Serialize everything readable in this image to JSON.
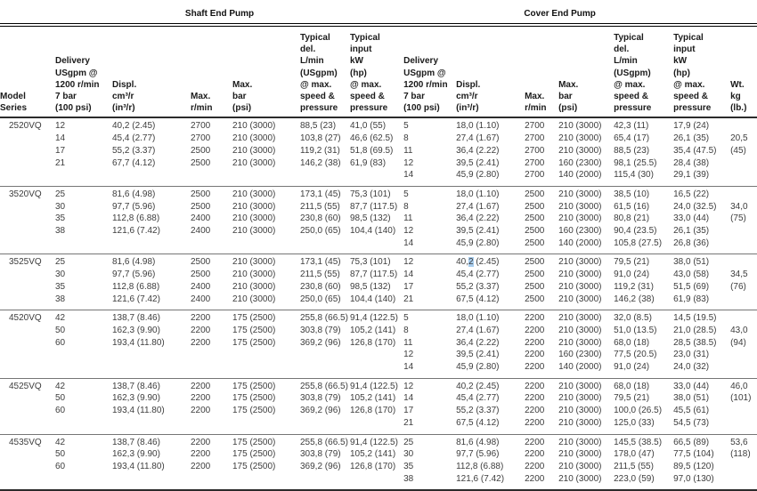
{
  "table": {
    "group_headers": {
      "shaft": "Shaft End Pump",
      "cover": "Cover End Pump"
    },
    "columns": {
      "model": "Model\nSeries",
      "delivery": "Delivery\nUSgpm @\n1200 r/min\n7 bar\n(100 psi)",
      "displ": "Displ.\ncm³/r\n(in³/r)",
      "max_rpm": "Max.\nr/min",
      "max_bar": "Max.\nbar\n(psi)",
      "typ_del": "Typical\ndel.\nL/min\n(USgpm)\n@ max.\nspeed &\npressure",
      "typ_input": "Typical\ninput\nkW\n(hp)\n@ max.\nspeed &\npressure",
      "wt": "Wt.\nkg\n(lb.)"
    },
    "highlight_cell": {
      "block": 2,
      "row": 0,
      "col": 1,
      "pre": "40,",
      "selected": "2",
      "post": " (2.45)",
      "color": "#a8cdee"
    },
    "blocks": [
      {
        "model": "2520VQ",
        "shaft": [
          [
            "12",
            "40,2 (2.45)",
            "2700",
            "210 (3000)",
            "88,5 (23)",
            "41,0 (55)"
          ],
          [
            "14",
            "45,4 (2.77)",
            "2700",
            "210 (3000)",
            "103,8 (27)",
            "46,6 (62.5)"
          ],
          [
            "17",
            "55,2 (3.37)",
            "2500",
            "210 (3000)",
            "119,2 (31)",
            "51,8 (69.5)"
          ],
          [
            "21",
            "67,7 (4.12)",
            "2500",
            "210 (3000)",
            "146,2 (38)",
            "61,9 (83)"
          ]
        ],
        "cover": [
          [
            "5",
            "18,0 (1.10)",
            "2700",
            "210 (3000)",
            "42,3 (11)",
            "17,9 (24)"
          ],
          [
            "8",
            "27,4 (1.67)",
            "2700",
            "210 (3000)",
            "65,4 (17)",
            "26,1 (35)"
          ],
          [
            "11",
            "36,4 (2.22)",
            "2700",
            "210 (3000)",
            "88,5 (23)",
            "35,4 (47.5)"
          ],
          [
            "12",
            "39,5 (2.41)",
            "2700",
            "160 (2300)",
            "98,1 (25.5)",
            "28,4 (38)"
          ],
          [
            "14",
            "45,9 (2.80)",
            "2700",
            "140 (2000)",
            "115,4 (30)",
            "29,1 (39)"
          ]
        ],
        "wt": {
          "1": "20,5",
          "2": "(45)"
        }
      },
      {
        "model": "3520VQ",
        "shaft": [
          [
            "25",
            "81,6 (4.98)",
            "2500",
            "210 (3000)",
            "173,1 (45)",
            "75,3 (101)"
          ],
          [
            "30",
            "97,7 (5.96)",
            "2500",
            "210 (3000)",
            "211,5 (55)",
            "87,7 (117.5)"
          ],
          [
            "35",
            "112,8 (6.88)",
            "2400",
            "210 (3000)",
            "230,8 (60)",
            "98,5 (132)"
          ],
          [
            "38",
            "121,6 (7.42)",
            "2400",
            "210 (3000)",
            "250,0 (65)",
            "104,4 (140)"
          ]
        ],
        "cover": [
          [
            "5",
            "18,0 (1.10)",
            "2500",
            "210 (3000)",
            "38,5 (10)",
            "16,5 (22)"
          ],
          [
            "8",
            "27,4 (1.67)",
            "2500",
            "210 (3000)",
            "61,5 (16)",
            "24,0 (32.5)"
          ],
          [
            "11",
            "36,4 (2.22)",
            "2500",
            "210 (3000)",
            "80,8 (21)",
            "33,0 (44)"
          ],
          [
            "12",
            "39,5 (2.41)",
            "2500",
            "160 (2300)",
            "90,4 (23.5)",
            "26,1 (35)"
          ],
          [
            "14",
            "45,9 (2.80)",
            "2500",
            "140 (2000)",
            "105,8 (27.5)",
            "26,8 (36)"
          ]
        ],
        "wt": {
          "1": "34,0",
          "2": "(75)"
        }
      },
      {
        "model": "3525VQ",
        "shaft": [
          [
            "25",
            "81,6 (4.98)",
            "2500",
            "210 (3000)",
            "173,1 (45)",
            "75,3 (101)"
          ],
          [
            "30",
            "97,7 (5.96)",
            "2500",
            "210 (3000)",
            "211,5 (55)",
            "87,7 (117.5)"
          ],
          [
            "35",
            "112,8 (6.88)",
            "2400",
            "210 (3000)",
            "230,8 (60)",
            "98,5 (132)"
          ],
          [
            "38",
            "121,6 (7.42)",
            "2400",
            "210 (3000)",
            "250,0 (65)",
            "104,4 (140)"
          ]
        ],
        "cover": [
          [
            "12",
            "40,2 (2.45)",
            "2500",
            "210 (3000)",
            "79,5 (21)",
            "38,0 (51)"
          ],
          [
            "14",
            "45,4 (2.77)",
            "2500",
            "210 (3000)",
            "91,0 (24)",
            "43,0 (58)"
          ],
          [
            "17",
            "55,2 (3.37)",
            "2500",
            "210 (3000)",
            "119,2 (31)",
            "51,5 (69)"
          ],
          [
            "21",
            "67,5 (4.12)",
            "2500",
            "210 (3000)",
            "146,2 (38)",
            "61,9 (83)"
          ]
        ],
        "wt": {
          "1": "34,5",
          "2": "(76)"
        }
      },
      {
        "model": "4520VQ",
        "shaft": [
          [
            "42",
            "138,7 (8.46)",
            "2200",
            "175 (2500)",
            "255,8 (66.5)",
            "91,4 (122.5)"
          ],
          [
            "50",
            "162,3 (9.90)",
            "2200",
            "175 (2500)",
            "303,8 (79)",
            "105,2 (141)"
          ],
          [
            "60",
            "193,4 (11.80)",
            "2200",
            "175 (2500)",
            "369,2 (96)",
            "126,8 (170)"
          ]
        ],
        "cover": [
          [
            "5",
            "18,0 (1.10)",
            "2200",
            "210 (3000)",
            "32,0 (8.5)",
            "14,5 (19.5)"
          ],
          [
            "8",
            "27,4 (1.67)",
            "2200",
            "210 (3000)",
            "51,0 (13.5)",
            "21,0 (28.5)"
          ],
          [
            "11",
            "36,4 (2.22)",
            "2200",
            "210 (3000)",
            "68,0 (18)",
            "28,5 (38.5)"
          ],
          [
            "12",
            "39,5 (2.41)",
            "2200",
            "160 (2300)",
            "77,5 (20.5)",
            "23,0 (31)"
          ],
          [
            "14",
            "45,9 (2.80)",
            "2200",
            "140 (2000)",
            "91,0 (24)",
            "24,0 (32)"
          ]
        ],
        "wt": {
          "1": "43,0",
          "2": "(94)"
        }
      },
      {
        "model": "4525VQ",
        "shaft": [
          [
            "42",
            "138,7 (8.46)",
            "2200",
            "175 (2500)",
            "255,8 (66.5)",
            "91,4 (122.5)"
          ],
          [
            "50",
            "162,3 (9.90)",
            "2200",
            "175 (2500)",
            "303,8 (79)",
            "105,2 (141)"
          ],
          [
            "60",
            "193,4 (11.80)",
            "2200",
            "175 (2500)",
            "369,2 (96)",
            "126,8 (170)"
          ]
        ],
        "cover": [
          [
            "12",
            "40,2 (2.45)",
            "2200",
            "210 (3000)",
            "68,0 (18)",
            "33,0 (44)"
          ],
          [
            "14",
            "45,4 (2.77)",
            "2200",
            "210 (3000)",
            "79,5 (21)",
            "38,0 (51)"
          ],
          [
            "17",
            "55,2 (3.37)",
            "2200",
            "210 (3000)",
            "100,0 (26.5)",
            "45,5 (61)"
          ],
          [
            "21",
            "67,5 (4.12)",
            "2200",
            "210 (3000)",
            "125,0 (33)",
            "54,5 (73)"
          ]
        ],
        "wt": {
          "0": "46,0",
          "1": "(101)"
        }
      },
      {
        "model": "4535VQ",
        "shaft": [
          [
            "42",
            "138,7 (8.46)",
            "2200",
            "175 (2500)",
            "255,8 (66.5)",
            "91,4 (122.5)"
          ],
          [
            "50",
            "162,3 (9.90)",
            "2200",
            "175 (2500)",
            "303,8 (79)",
            "105,2 (141)"
          ],
          [
            "60",
            "193,4 (11.80)",
            "2200",
            "175 (2500)",
            "369,2 (96)",
            "126,8 (170)"
          ]
        ],
        "cover": [
          [
            "25",
            "81,6 (4.98)",
            "2200",
            "210 (3000)",
            "145,5 (38.5)",
            "66,5 (89)"
          ],
          [
            "30",
            "97,7 (5.96)",
            "2200",
            "210 (3000)",
            "178,0 (47)",
            "77,5 (104)"
          ],
          [
            "35",
            "112,8 (6.88)",
            "2200",
            "210 (3000)",
            "211,5 (55)",
            "89,5 (120)"
          ],
          [
            "38",
            "121,6 (7.42)",
            "2200",
            "210 (3000)",
            "223,0 (59)",
            "97,0 (130)"
          ]
        ],
        "wt": {
          "0": "53,6",
          "1": "(118)"
        }
      }
    ]
  }
}
